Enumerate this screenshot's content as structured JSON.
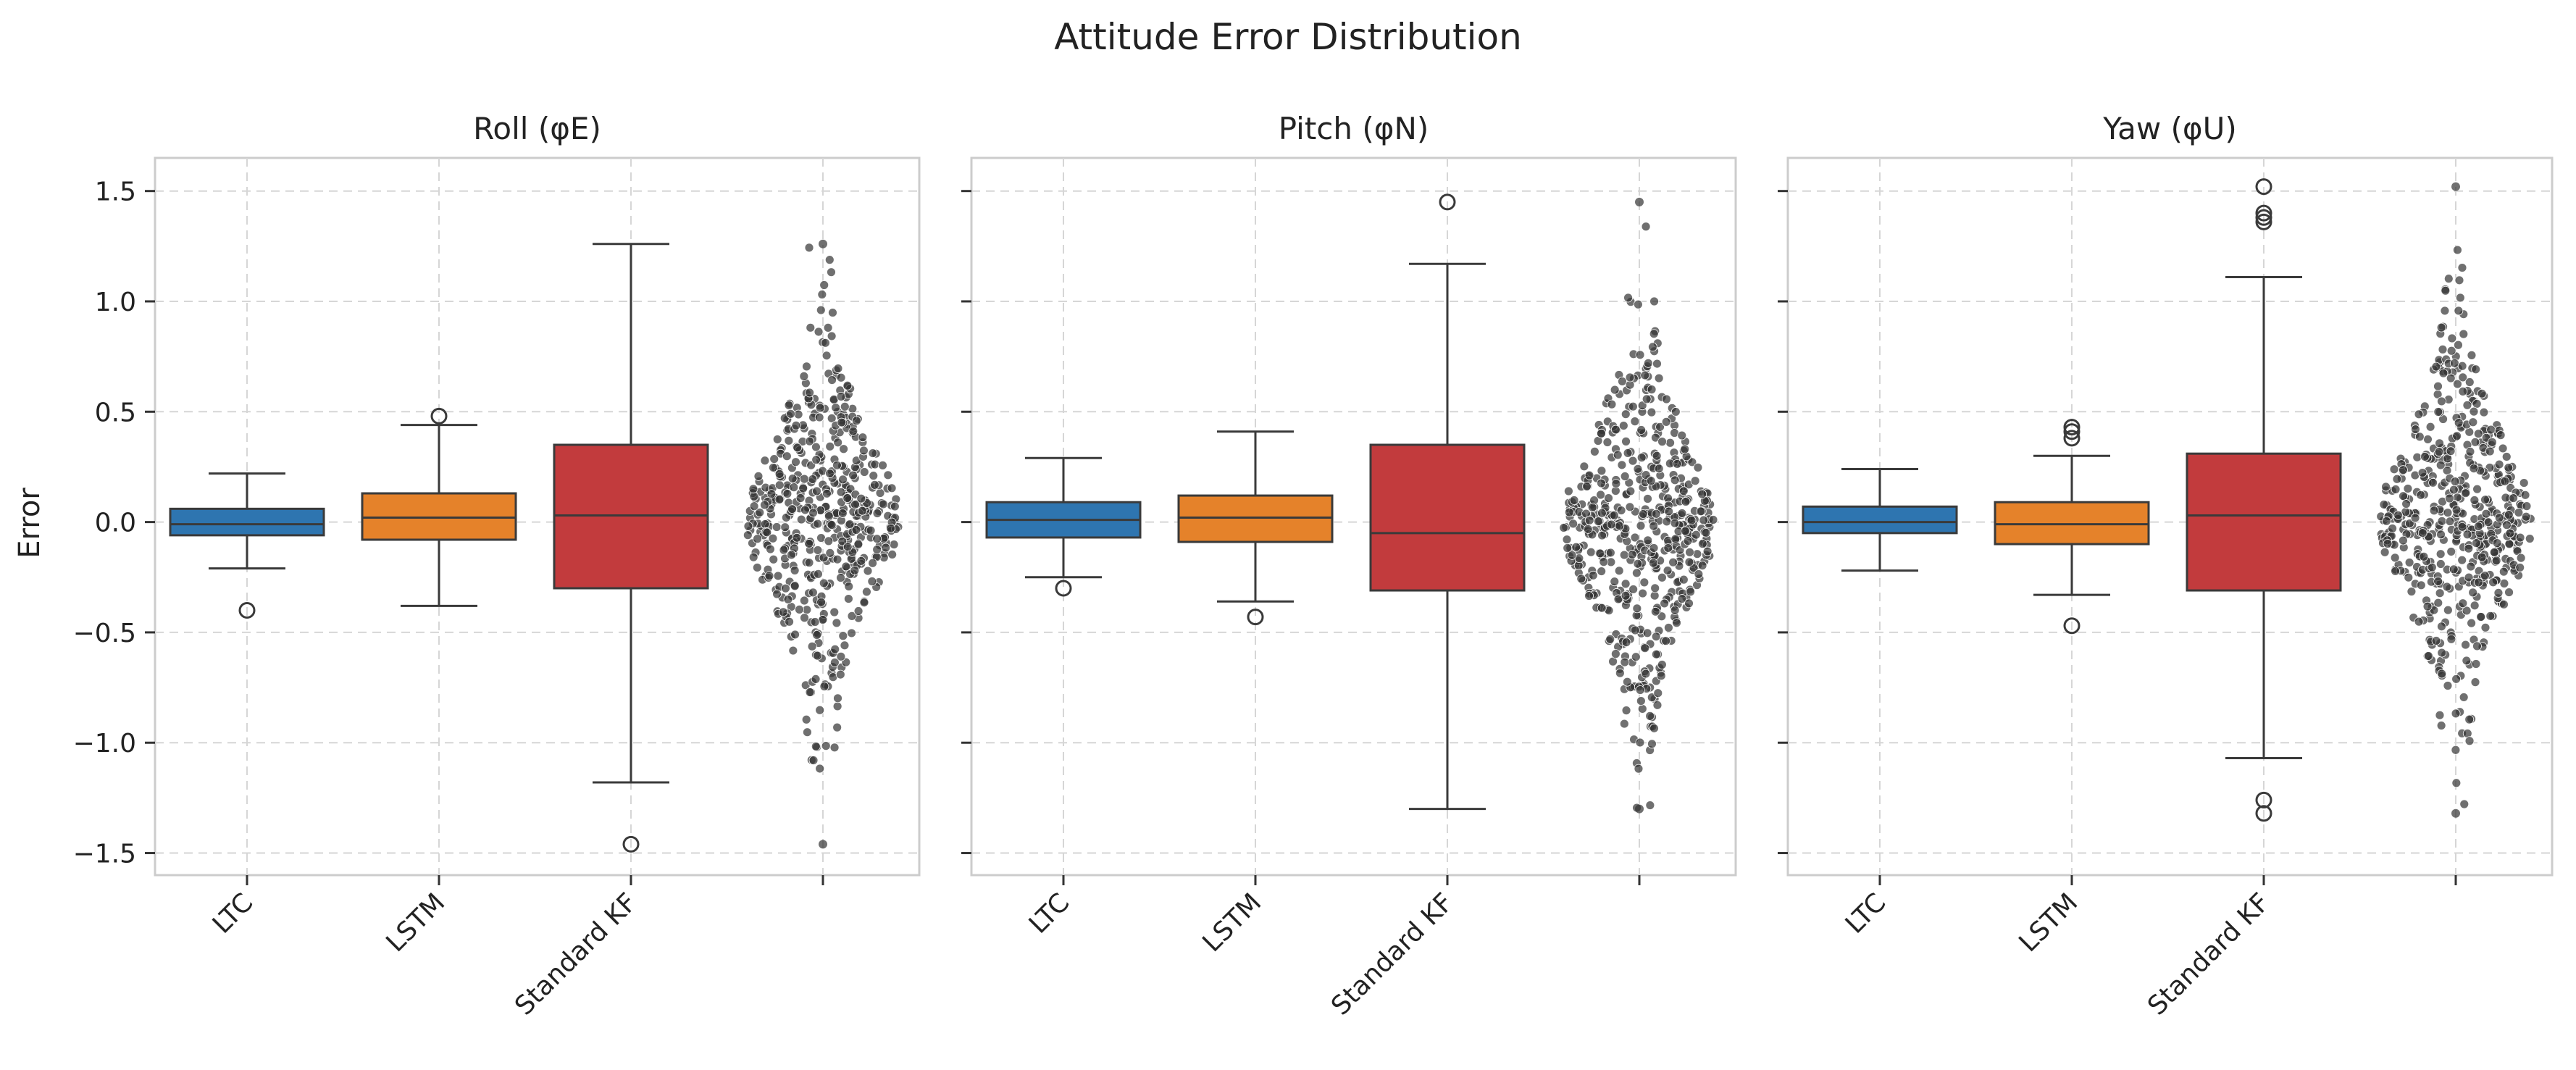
{
  "chart_data": {
    "type": "box",
    "title": "Attitude Error Distribution",
    "ylabel": "Error",
    "ylim": [
      -1.6,
      1.65
    ],
    "yticks": [
      -1.5,
      -1.0,
      -0.5,
      0.0,
      0.5,
      1.0,
      1.5
    ],
    "ytick_labels": [
      "−1.5",
      "−1.0",
      "−0.5",
      "0.0",
      "0.5",
      "1.0",
      "1.5"
    ],
    "categories": [
      "LTC",
      "LSTM",
      "Standard KF",
      ""
    ],
    "grid": true,
    "colors": {
      "LTC": "#2e75b0",
      "LSTM": "#e5822a",
      "Standard KF": "#c23b3d",
      "swarm": "#333333"
    },
    "panels": [
      {
        "title": "Roll (φE)",
        "boxes": [
          {
            "name": "LTC",
            "q1": -0.06,
            "median": -0.01,
            "q3": 0.06,
            "whisker_low": -0.21,
            "whisker_high": 0.22,
            "outliers": [
              -0.4
            ]
          },
          {
            "name": "LSTM",
            "q1": -0.08,
            "median": 0.02,
            "q3": 0.13,
            "whisker_low": -0.38,
            "whisker_high": 0.44,
            "outliers": [
              0.48
            ]
          },
          {
            "name": "Standard KF",
            "q1": -0.3,
            "median": 0.03,
            "q3": 0.35,
            "whisker_low": -1.18,
            "whisker_high": 1.26,
            "outliers": [
              -1.46
            ]
          }
        ],
        "swarm_range": [
          -1.46,
          1.26
        ]
      },
      {
        "title": "Pitch (φN)",
        "boxes": [
          {
            "name": "LTC",
            "q1": -0.07,
            "median": 0.01,
            "q3": 0.09,
            "whisker_low": -0.25,
            "whisker_high": 0.29,
            "outliers": [
              -0.3
            ]
          },
          {
            "name": "LSTM",
            "q1": -0.09,
            "median": 0.02,
            "q3": 0.12,
            "whisker_low": -0.36,
            "whisker_high": 0.41,
            "outliers": [
              -0.43
            ]
          },
          {
            "name": "Standard KF",
            "q1": -0.31,
            "median": -0.05,
            "q3": 0.35,
            "whisker_low": -1.3,
            "whisker_high": 1.17,
            "outliers": [
              1.45
            ]
          }
        ],
        "swarm_range": [
          -1.3,
          1.45
        ]
      },
      {
        "title": "Yaw (φU)",
        "boxes": [
          {
            "name": "LTC",
            "q1": -0.05,
            "median": 0.0,
            "q3": 0.07,
            "whisker_low": -0.22,
            "whisker_high": 0.24,
            "outliers": []
          },
          {
            "name": "LSTM",
            "q1": -0.1,
            "median": -0.01,
            "q3": 0.09,
            "whisker_low": -0.33,
            "whisker_high": 0.3,
            "outliers": [
              0.38,
              0.41,
              0.43,
              -0.47
            ]
          },
          {
            "name": "Standard KF",
            "q1": -0.31,
            "median": 0.03,
            "q3": 0.31,
            "whisker_low": -1.07,
            "whisker_high": 1.11,
            "outliers": [
              1.36,
              1.38,
              1.4,
              1.52,
              -1.26,
              -1.32
            ]
          }
        ],
        "swarm_range": [
          -1.32,
          1.52
        ]
      }
    ]
  }
}
